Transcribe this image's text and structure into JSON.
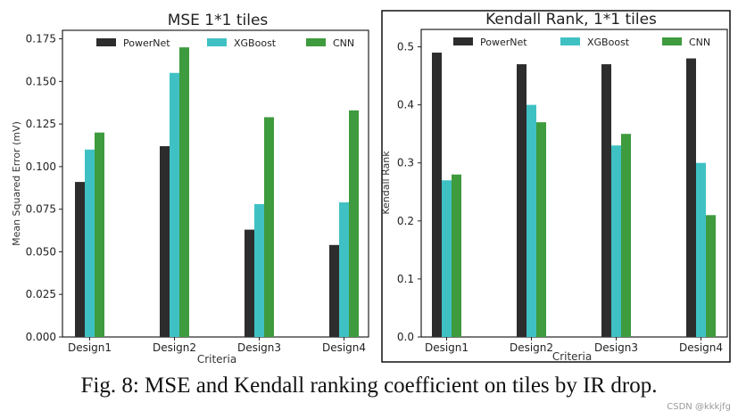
{
  "caption": "Fig. 8: MSE and Kendall ranking coefficient on tiles by IR drop.",
  "watermark": "CSDN @kkkjfg",
  "colors": {
    "PowerNet": "#2d2d2d",
    "XGBoost": "#3fc1c4",
    "CNN": "#3e9b3e"
  },
  "chart_data": [
    {
      "type": "bar",
      "title": "MSE 1*1 tiles",
      "xlabel": "Criteria",
      "ylabel": "Mean Squared Error (mV)",
      "ylim": [
        0,
        0.18
      ],
      "yticks": [
        "0.000",
        "0.025",
        "0.050",
        "0.075",
        "0.100",
        "0.125",
        "0.150",
        "0.175"
      ],
      "categories": [
        "Design1",
        "Design2",
        "Design3",
        "Design4"
      ],
      "series": [
        {
          "name": "PowerNet",
          "values": [
            0.091,
            0.112,
            0.063,
            0.054
          ]
        },
        {
          "name": "XGBoost",
          "values": [
            0.11,
            0.155,
            0.078,
            0.079
          ]
        },
        {
          "name": "CNN",
          "values": [
            0.12,
            0.17,
            0.129,
            0.133
          ]
        }
      ],
      "legend": "top"
    },
    {
      "type": "bar",
      "title": "Kendall Rank, 1*1 tiles",
      "xlabel": "Criteria",
      "ylabel": "Kendall Rank",
      "ylim": [
        0,
        0.53
      ],
      "yticks": [
        "0.0",
        "0.1",
        "0.2",
        "0.3",
        "0.4",
        "0.5"
      ],
      "categories": [
        "Design1",
        "Design2",
        "Design3",
        "Design4"
      ],
      "series": [
        {
          "name": "PowerNet",
          "values": [
            0.49,
            0.47,
            0.47,
            0.48
          ]
        },
        {
          "name": "XGBoost",
          "values": [
            0.27,
            0.4,
            0.33,
            0.3
          ]
        },
        {
          "name": "CNN",
          "values": [
            0.28,
            0.37,
            0.35,
            0.21
          ]
        }
      ],
      "legend": "top"
    }
  ]
}
